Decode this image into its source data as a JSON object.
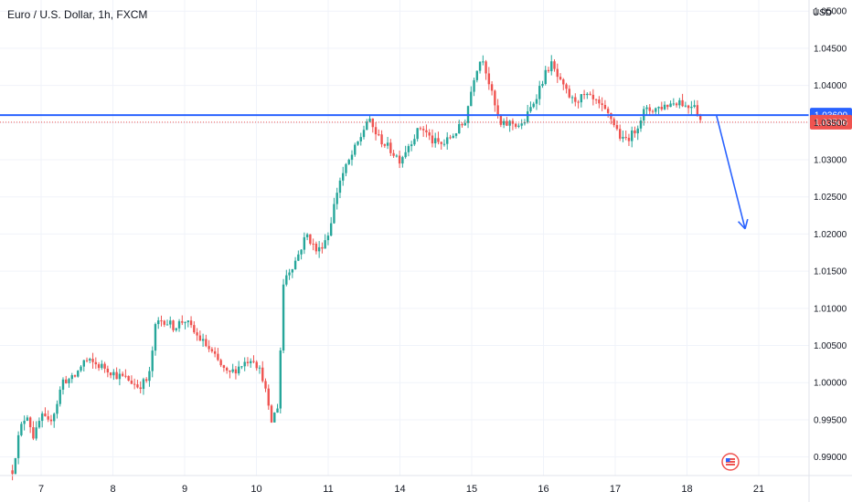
{
  "chart_data": {
    "type": "candlestick",
    "title": "Euro / U.S. Dollar, 1h, FXCM",
    "currency": "USD",
    "ylim": [
      0.9875,
      1.0515
    ],
    "y_ticks": [
      "1.05000",
      "1.04500",
      "1.04000",
      "1.03500",
      "1.03000",
      "1.02500",
      "1.02000",
      "1.01500",
      "1.01000",
      "1.00500",
      "1.00000",
      "0.99500",
      "0.99000"
    ],
    "y_tick_values": [
      1.05,
      1.045,
      1.04,
      1.035,
      1.03,
      1.025,
      1.02,
      1.015,
      1.01,
      1.005,
      1.0,
      0.995,
      0.99
    ],
    "x_ticks": [
      "7",
      "8",
      "9",
      "10",
      "11",
      "14",
      "15",
      "16",
      "17",
      "18",
      "21"
    ],
    "x_tick_days": [
      0,
      1,
      2,
      3,
      4,
      5,
      6,
      7,
      8,
      9,
      10
    ],
    "day_range": [
      -0.45,
      10.35
    ],
    "colors": {
      "up": "#26a69a",
      "down": "#ef5350",
      "level": "#2962ff",
      "last_price": "#ef5350",
      "arrow": "#2962ff"
    },
    "horizontal_line": {
      "value": 1.036,
      "label": "1.03600"
    },
    "last_price": {
      "value": 1.03506,
      "label": "1.03506"
    },
    "projection_arrow": {
      "from": [
        9.41,
        1.036
      ],
      "to": [
        9.81,
        1.0207
      ]
    },
    "close_path": [
      [
        -0.4,
        0.9882
      ],
      [
        -0.3,
        0.9935
      ],
      [
        -0.2,
        0.996
      ],
      [
        -0.1,
        0.9925
      ],
      [
        0.0,
        0.9955
      ],
      [
        0.1,
        0.9945
      ],
      [
        0.2,
        0.9965
      ],
      [
        0.3,
        1.0003
      ],
      [
        0.45,
        1.0005
      ],
      [
        0.6,
        1.003
      ],
      [
        0.75,
        1.0025
      ],
      [
        0.9,
        1.002
      ],
      [
        1.05,
        1.001
      ],
      [
        1.2,
        1.0005
      ],
      [
        1.35,
        0.9995
      ],
      [
        1.5,
        1.0005
      ],
      [
        1.6,
        1.008
      ],
      [
        1.7,
        1.0085
      ],
      [
        1.85,
        1.0075
      ],
      [
        2.0,
        1.0085
      ],
      [
        2.15,
        1.0065
      ],
      [
        2.3,
        1.005
      ],
      [
        2.45,
        1.003
      ],
      [
        2.6,
        1.001
      ],
      [
        2.8,
        1.0025
      ],
      [
        2.95,
        1.0035
      ],
      [
        3.1,
        1.0005
      ],
      [
        3.2,
        0.9945
      ],
      [
        3.3,
        0.997
      ],
      [
        3.38,
        1.014
      ],
      [
        3.55,
        1.0165
      ],
      [
        3.7,
        1.02
      ],
      [
        3.85,
        1.0175
      ],
      [
        4.0,
        1.02
      ],
      [
        4.15,
        1.027
      ],
      [
        4.3,
        1.03
      ],
      [
        4.45,
        1.033
      ],
      [
        4.55,
        1.0355
      ],
      [
        4.7,
        1.033
      ],
      [
        4.85,
        1.0315
      ],
      [
        5.0,
        1.03
      ],
      [
        5.15,
        1.0325
      ],
      [
        5.3,
        1.0345
      ],
      [
        5.45,
        1.0325
      ],
      [
        5.6,
        1.032
      ],
      [
        5.75,
        1.0335
      ],
      [
        5.9,
        1.035
      ],
      [
        6.05,
        1.042
      ],
      [
        6.15,
        1.044
      ],
      [
        6.3,
        1.038
      ],
      [
        6.4,
        1.0345
      ],
      [
        6.55,
        1.035
      ],
      [
        6.7,
        1.0345
      ],
      [
        6.85,
        1.0375
      ],
      [
        7.0,
        1.041
      ],
      [
        7.1,
        1.043
      ],
      [
        7.25,
        1.04
      ],
      [
        7.4,
        1.038
      ],
      [
        7.6,
        1.0385
      ],
      [
        7.75,
        1.0375
      ],
      [
        7.95,
        1.0355
      ],
      [
        8.1,
        1.0325
      ],
      [
        8.25,
        1.0335
      ],
      [
        8.4,
        1.0365
      ],
      [
        8.6,
        1.037
      ],
      [
        8.75,
        1.0375
      ],
      [
        8.9,
        1.038
      ],
      [
        9.0,
        1.037
      ],
      [
        9.1,
        1.0378
      ],
      [
        9.15,
        1.0362
      ],
      [
        9.2,
        1.0351
      ]
    ]
  }
}
